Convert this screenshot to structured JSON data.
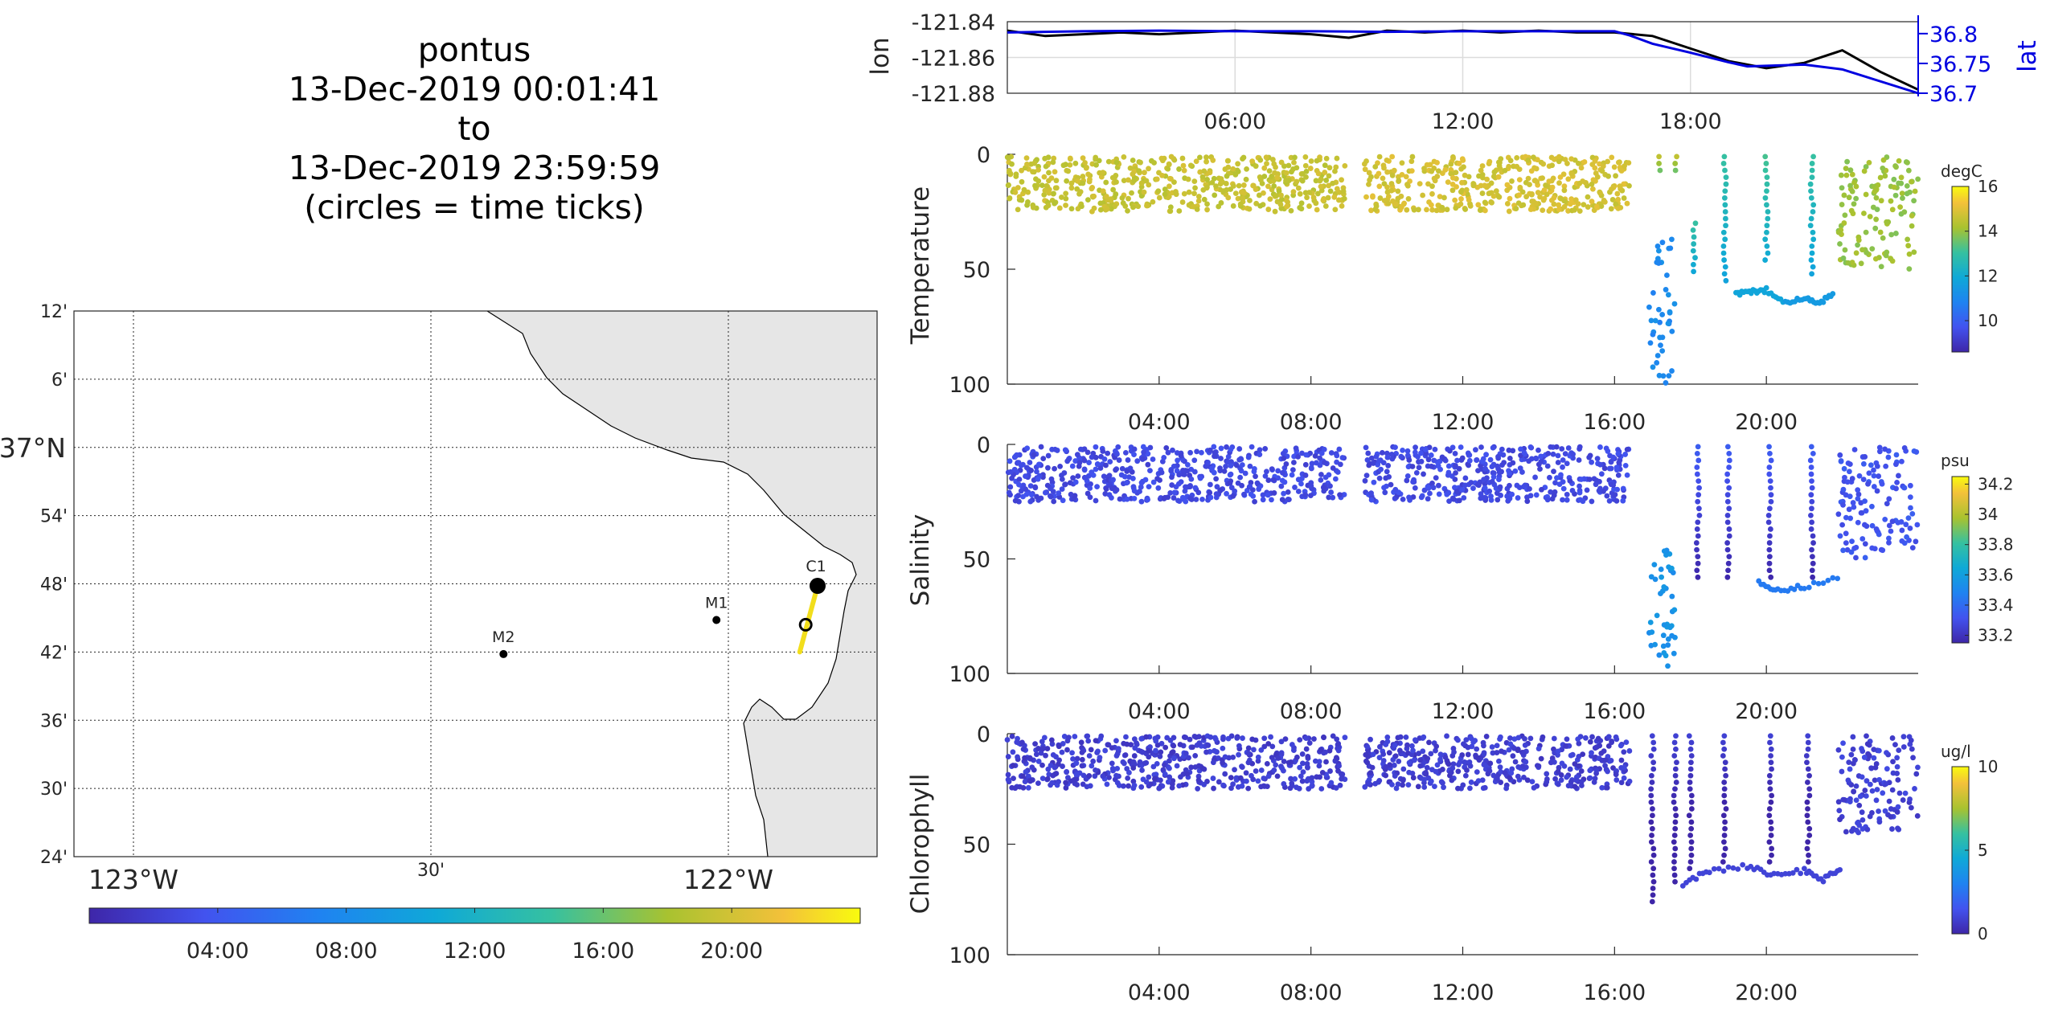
{
  "title": {
    "line1": "pontus",
    "line2": "13-Dec-2019 00:01:41",
    "line3": "to",
    "line4": "13-Dec-2019 23:59:59",
    "line5": "(circles = time ticks)"
  },
  "colors": {
    "track_lon": "#000000",
    "track_lat": "#0000e0",
    "land": "#e6e6e6",
    "coast": "#000000",
    "lat_axis": "#0000e0"
  },
  "chart_data": [
    {
      "id": "track_map",
      "type": "scatter",
      "lon_ticks": [
        "123°W",
        "30'",
        "122°W"
      ],
      "lon_tick_values": [
        -123.0,
        -122.5,
        -122.0
      ],
      "lat_ticks": [
        "12'",
        "6'",
        "37°N",
        "54'",
        "48'",
        "42'",
        "36'",
        "30'",
        "24'"
      ],
      "lat_tick_values": [
        37.2,
        37.1,
        37.0,
        36.9,
        36.8,
        36.7,
        36.6,
        36.5,
        36.4
      ],
      "xlim": [
        -123.1,
        -121.75
      ],
      "ylim": [
        36.4,
        37.2
      ],
      "stations": [
        {
          "name": "C1",
          "lon": -121.85,
          "lat": 36.797
        },
        {
          "name": "M1",
          "lon": -122.02,
          "lat": 36.747
        },
        {
          "name": "M2",
          "lon": -122.378,
          "lat": 36.697
        }
      ],
      "track": {
        "lon_start": -121.85,
        "lat_start": 36.797,
        "lon_end": -121.88,
        "lat_end": 36.7
      },
      "time_circle": {
        "lon": -121.87,
        "lat": 36.74
      },
      "colorbar": {
        "ticks": [
          "04:00",
          "08:00",
          "12:00",
          "16:00",
          "20:00"
        ],
        "range_hours": [
          0,
          24
        ]
      }
    },
    {
      "id": "lon_lat",
      "type": "line",
      "xlabel": "",
      "ylabel_left": "lon",
      "ylabel_right": "lat",
      "x_ticks": [
        "06:00",
        "12:00",
        "18:00"
      ],
      "y_left_ticks": [
        "-121.84",
        "-121.86",
        "-121.88"
      ],
      "y_right_ticks": [
        "36.8",
        "36.75",
        "36.7"
      ],
      "y_left_lim": [
        -121.88,
        -121.84
      ],
      "y_right_lim": [
        36.7,
        36.82
      ],
      "series": [
        {
          "name": "lon",
          "axis": "left",
          "x_hours": [
            0,
            1,
            2,
            3,
            4,
            5,
            6,
            7,
            8,
            9,
            10,
            11,
            12,
            13,
            14,
            15,
            16,
            17,
            18,
            19,
            20,
            21,
            22,
            23,
            24
          ],
          "values": [
            -121.845,
            -121.848,
            -121.847,
            -121.846,
            -121.847,
            -121.846,
            -121.845,
            -121.846,
            -121.847,
            -121.849,
            -121.845,
            -121.846,
            -121.845,
            -121.846,
            -121.845,
            -121.846,
            -121.846,
            -121.848,
            -121.855,
            -121.862,
            -121.866,
            -121.863,
            -121.856,
            -121.868,
            -121.878
          ]
        },
        {
          "name": "lat",
          "axis": "right",
          "x_hours": [
            0,
            2,
            4,
            6,
            8,
            10,
            12,
            14,
            16,
            16.4,
            17,
            18,
            19,
            19.5,
            20,
            21,
            22,
            24
          ],
          "values": [
            36.802,
            36.804,
            36.805,
            36.804,
            36.804,
            36.803,
            36.804,
            36.804,
            36.804,
            36.797,
            36.783,
            36.768,
            36.752,
            36.745,
            36.746,
            36.748,
            36.74,
            36.7
          ]
        }
      ]
    },
    {
      "id": "temperature",
      "type": "scatter",
      "ylabel": "Temperature",
      "x_ticks": [
        "04:00",
        "08:00",
        "12:00",
        "16:00",
        "20:00"
      ],
      "y_ticks": [
        "0",
        "50",
        "100"
      ],
      "ylim": [
        0,
        100
      ],
      "colorbar": {
        "unit": "degC",
        "ticks": [
          "16",
          "14",
          "12",
          "10"
        ],
        "range": [
          8.6,
          16
        ]
      },
      "segments": [
        {
          "t_start": 0.0,
          "t_end": 8.9,
          "depth_min": 1,
          "depth_max": 25,
          "value": 14.6
        },
        {
          "t_start": 9.4,
          "t_end": 16.4,
          "depth_min": 1,
          "depth_max": 25,
          "value": 14.8
        },
        {
          "t_start": 16.9,
          "t_end": 17.6,
          "depth_min": 35,
          "depth_max": 100,
          "value": 11.0
        },
        {
          "t_start": 21.9,
          "t_end": 24.0,
          "depth_min": 1,
          "depth_max": 50,
          "value": 14.0
        }
      ],
      "profiles": [
        {
          "t": 17.2,
          "depth_min": 1,
          "depth_max": 10,
          "value": 14.5
        },
        {
          "t": 17.6,
          "depth_min": 1,
          "depth_max": 10,
          "value": 14.5
        },
        {
          "t": 18.1,
          "depth_min": 30,
          "depth_max": 55,
          "value": 13.0
        },
        {
          "t": 18.9,
          "depth_min": 1,
          "depth_max": 58,
          "value": 13.0
        },
        {
          "t": 20.0,
          "depth_min": 1,
          "depth_max": 50,
          "value": 13.2
        },
        {
          "t": 21.2,
          "depth_min": 1,
          "depth_max": 55,
          "value": 13.0
        }
      ],
      "bottom_trace": [
        {
          "t": 19.2,
          "depth": 61,
          "value": 11.8
        },
        {
          "t": 19.6,
          "depth": 60,
          "value": 11.8
        },
        {
          "t": 20.0,
          "depth": 59,
          "value": 11.8
        },
        {
          "t": 20.5,
          "depth": 64,
          "value": 11.5
        },
        {
          "t": 21.0,
          "depth": 63,
          "value": 11.5
        },
        {
          "t": 21.4,
          "depth": 65,
          "value": 11.5
        },
        {
          "t": 21.8,
          "depth": 60,
          "value": 11.6
        }
      ]
    },
    {
      "id": "salinity",
      "type": "scatter",
      "ylabel": "Salinity",
      "x_ticks": [
        "04:00",
        "08:00",
        "12:00",
        "16:00",
        "20:00"
      ],
      "y_ticks": [
        "0",
        "50",
        "100"
      ],
      "ylim": [
        0,
        100
      ],
      "colorbar": {
        "unit": "psu",
        "ticks": [
          "34.2",
          "34",
          "33.8",
          "33.6",
          "33.4",
          "33.2"
        ],
        "range": [
          33.15,
          34.25
        ]
      },
      "segments": [
        {
          "t_start": 0.0,
          "t_end": 8.9,
          "depth_min": 1,
          "depth_max": 25,
          "value": 33.28
        },
        {
          "t_start": 9.4,
          "t_end": 16.4,
          "depth_min": 1,
          "depth_max": 25,
          "value": 33.28
        },
        {
          "t_start": 16.9,
          "t_end": 17.6,
          "depth_min": 45,
          "depth_max": 98,
          "value": 33.55
        },
        {
          "t_start": 21.9,
          "t_end": 24.0,
          "depth_min": 1,
          "depth_max": 50,
          "value": 33.32
        }
      ],
      "profiles": [
        {
          "t": 18.2,
          "depth_min": 1,
          "depth_max": 60,
          "value": 33.35
        },
        {
          "t": 19.0,
          "depth_min": 1,
          "depth_max": 60,
          "value": 33.35
        },
        {
          "t": 20.1,
          "depth_min": 1,
          "depth_max": 60,
          "value": 33.35
        },
        {
          "t": 21.2,
          "depth_min": 1,
          "depth_max": 60,
          "value": 33.35
        }
      ],
      "bottom_trace": [
        {
          "t": 19.8,
          "depth": 60,
          "value": 33.45
        },
        {
          "t": 20.3,
          "depth": 64,
          "value": 33.45
        },
        {
          "t": 21.0,
          "depth": 62,
          "value": 33.45
        },
        {
          "t": 22.0,
          "depth": 58,
          "value": 33.4
        }
      ]
    },
    {
      "id": "chlorophyll",
      "type": "scatter",
      "ylabel": "Chlorophyll",
      "x_ticks": [
        "04:00",
        "08:00",
        "12:00",
        "16:00",
        "20:00"
      ],
      "y_ticks": [
        "0",
        "50",
        "100"
      ],
      "ylim": [
        0,
        100
      ],
      "colorbar": {
        "unit": "ug/l",
        "ticks": [
          "10",
          "5",
          "0"
        ],
        "range": [
          0,
          10
        ]
      },
      "segments": [
        {
          "t_start": 0.0,
          "t_end": 8.9,
          "depth_min": 1,
          "depth_max": 25,
          "value": 0.8
        },
        {
          "t_start": 9.4,
          "t_end": 16.4,
          "depth_min": 1,
          "depth_max": 25,
          "value": 0.8
        },
        {
          "t_start": 21.9,
          "t_end": 24.0,
          "depth_min": 1,
          "depth_max": 45,
          "value": 0.9
        }
      ],
      "profiles": [
        {
          "t": 17.0,
          "depth_min": 1,
          "depth_max": 80,
          "value": 0.9
        },
        {
          "t": 17.6,
          "depth_min": 1,
          "depth_max": 70,
          "value": 0.9
        },
        {
          "t": 18.0,
          "depth_min": 1,
          "depth_max": 65,
          "value": 0.9
        },
        {
          "t": 18.9,
          "depth_min": 1,
          "depth_max": 60,
          "value": 0.9
        },
        {
          "t": 20.1,
          "depth_min": 1,
          "depth_max": 60,
          "value": 0.9
        },
        {
          "t": 21.1,
          "depth_min": 1,
          "depth_max": 62,
          "value": 0.9
        }
      ],
      "bottom_trace": [
        {
          "t": 17.8,
          "depth": 68,
          "value": 1.0
        },
        {
          "t": 18.5,
          "depth": 62,
          "value": 1.0
        },
        {
          "t": 19.5,
          "depth": 60,
          "value": 1.0
        },
        {
          "t": 20.2,
          "depth": 64,
          "value": 1.0
        },
        {
          "t": 21.0,
          "depth": 62,
          "value": 1.0
        },
        {
          "t": 21.5,
          "depth": 66,
          "value": 1.0
        },
        {
          "t": 22.0,
          "depth": 60,
          "value": 1.0
        }
      ]
    }
  ]
}
